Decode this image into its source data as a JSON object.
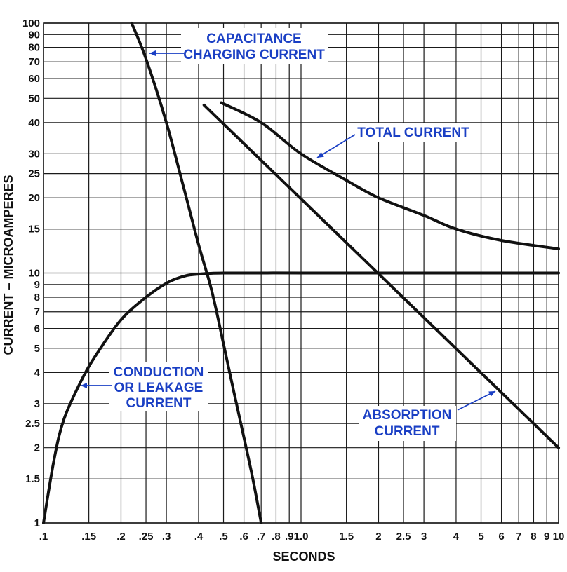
{
  "chart_data": {
    "type": "line",
    "title": "",
    "xlabel": "SECONDS",
    "ylabel": "CURRENT – MICROAMPERES",
    "x_scale": "log",
    "y_scale": "log",
    "xlim": [
      0.1,
      10
    ],
    "ylim": [
      1,
      100
    ],
    "grid": true,
    "x_ticks": [
      0.1,
      0.15,
      0.2,
      0.25,
      0.3,
      0.4,
      0.5,
      0.6,
      0.7,
      0.8,
      0.9,
      1.0,
      1.5,
      2,
      2.5,
      3,
      4,
      5,
      6,
      7,
      8,
      9,
      10
    ],
    "x_tick_labels": [
      ".1",
      ".15",
      ".2",
      ".25",
      ".3",
      ".4",
      ".5",
      ".6",
      ".7",
      ".8",
      ".9",
      "1.0",
      "1.5",
      "2",
      "2.5",
      "3",
      "4",
      "5",
      "6",
      "7",
      "8",
      "9",
      "10"
    ],
    "y_ticks": [
      1,
      1.5,
      2,
      2.5,
      3,
      4,
      5,
      6,
      7,
      8,
      9,
      10,
      15,
      20,
      25,
      30,
      40,
      50,
      60,
      70,
      80,
      90,
      100
    ],
    "y_tick_labels": [
      "1",
      "1.5",
      "2",
      "2.5",
      "3",
      "4",
      "5",
      "6",
      "7",
      "8",
      "9",
      "10",
      "15",
      "20",
      "25",
      "30",
      "40",
      "50",
      "60",
      "70",
      "80",
      "90",
      "100"
    ],
    "series": [
      {
        "points": [
          [
            0.22,
            100
          ],
          [
            0.25,
            72
          ],
          [
            0.3,
            40
          ],
          [
            0.35,
            22
          ],
          [
            0.4,
            13
          ],
          [
            0.45,
            8.5
          ],
          [
            0.5,
            5.2
          ],
          [
            0.55,
            3.3
          ],
          [
            0.6,
            2.2
          ],
          [
            0.65,
            1.5
          ],
          [
            0.7,
            1.0
          ]
        ]
      },
      {
        "points": [
          [
            0.1,
            1.0
          ],
          [
            0.11,
            1.8
          ],
          [
            0.12,
            2.6
          ],
          [
            0.14,
            3.7
          ],
          [
            0.16,
            4.7
          ],
          [
            0.2,
            6.5
          ],
          [
            0.25,
            8.0
          ],
          [
            0.3,
            9.1
          ],
          [
            0.35,
            9.7
          ],
          [
            0.4,
            9.9
          ],
          [
            0.5,
            10
          ],
          [
            1.0,
            10
          ],
          [
            2.0,
            10
          ],
          [
            5.0,
            10
          ],
          [
            10,
            10
          ]
        ]
      },
      {
        "points": [
          [
            0.42,
            47
          ],
          [
            10,
            2
          ]
        ]
      },
      {
        "points": [
          [
            0.49,
            48
          ],
          [
            0.7,
            40
          ],
          [
            1.0,
            30
          ],
          [
            1.5,
            23.5
          ],
          [
            2.0,
            20
          ],
          [
            3.0,
            17
          ],
          [
            4.0,
            15
          ],
          [
            6.0,
            13.5
          ],
          [
            10,
            12.5
          ]
        ]
      }
    ],
    "annotations": [
      {
        "lines": [
          "CAPACITANCE",
          "CHARGING CURRENT"
        ],
        "point": [
          0.25,
          72
        ]
      },
      {
        "lines": [
          "TOTAL CURRENT"
        ],
        "point": [
          1.02,
          30
        ]
      },
      {
        "lines": [
          "CONDUCTION",
          "OR LEAKAGE",
          "CURRENT"
        ],
        "point": [
          0.145,
          3.7
        ]
      },
      {
        "lines": [
          "ABSORPTION",
          "CURRENT"
        ],
        "point": [
          5.6,
          3.4
        ]
      }
    ]
  },
  "style": {
    "line_color": "#111111",
    "annotation_color": "#1a3fc4",
    "grid_color": "#1a1a1a",
    "background": "#ffffff"
  }
}
